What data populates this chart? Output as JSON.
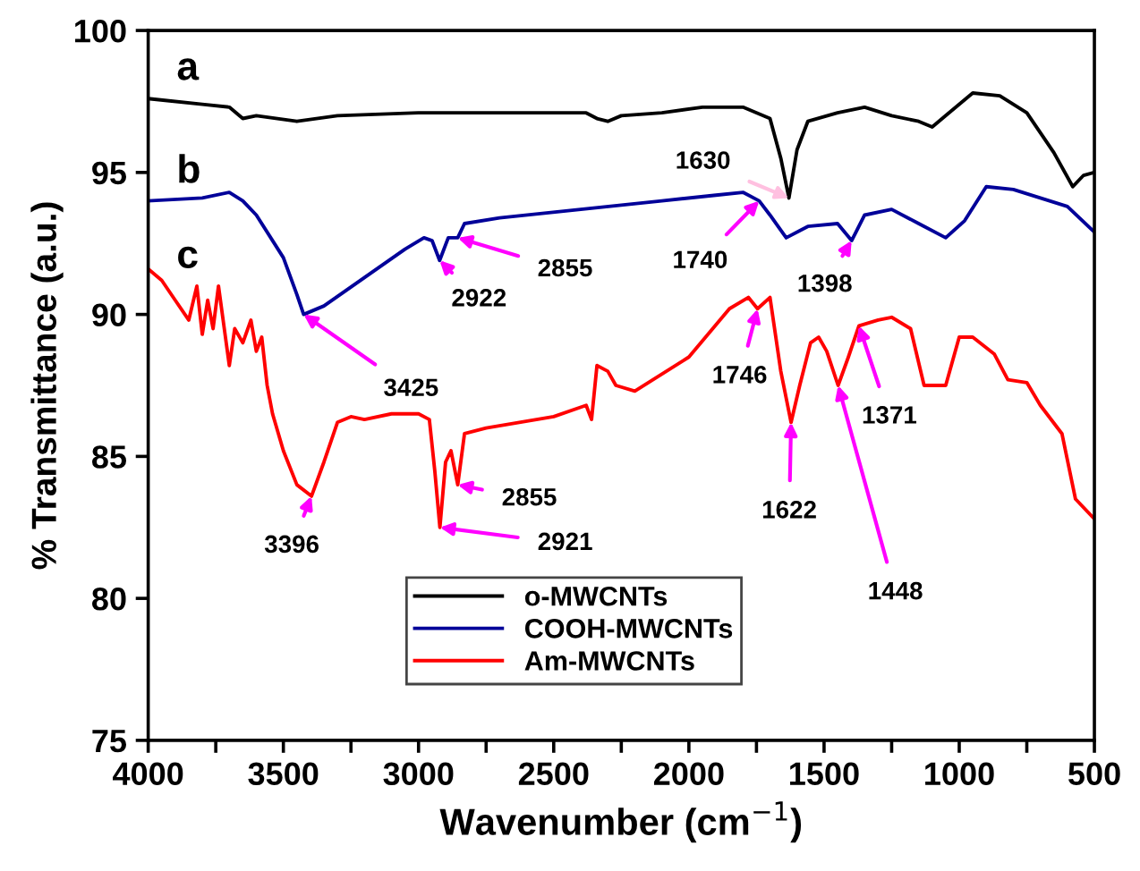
{
  "chart_data": {
    "type": "line",
    "xlabel": "Wavenumber (cm$^{−1}$)",
    "ylabel": "% Transmittance (a.u.)",
    "xlim": [
      4000,
      500
    ],
    "ylim": [
      75,
      100
    ],
    "xticks": [
      4000,
      {
        "value": 3750,
        "label": null
      },
      3500,
      {
        "value": 3250,
        "label": null
      },
      3000,
      {
        "value": 2750,
        "label": null
      },
      2500,
      {
        "value": 2250,
        "label": null
      },
      2000,
      {
        "value": 1750,
        "label": null
      },
      1500,
      {
        "value": 1250,
        "label": null
      },
      1000,
      {
        "value": 750,
        "label": null
      },
      500
    ],
    "yticks": [
      75,
      80,
      85,
      90,
      95,
      100
    ],
    "grid": false,
    "legend": "bottom",
    "marker": "none",
    "line_style": "solid",
    "series": [
      {
        "name": "o-MWCNTs",
        "color": "#000000",
        "x": [
          4000,
          3800,
          3700,
          3650,
          3600,
          3450,
          3300,
          3000,
          2500,
          2380,
          2340,
          2300,
          2250,
          2100,
          1950,
          1800,
          1700,
          1660,
          1630,
          1600,
          1560,
          1450,
          1350,
          1250,
          1150,
          1100,
          1050,
          950,
          850,
          750,
          650,
          580,
          540,
          500
        ],
        "values": [
          97.6,
          97.4,
          97.3,
          96.9,
          97.0,
          96.8,
          97.0,
          97.1,
          97.1,
          97.1,
          96.9,
          96.8,
          97.0,
          97.1,
          97.3,
          97.3,
          96.9,
          95.5,
          94.1,
          95.8,
          96.8,
          97.1,
          97.3,
          97.0,
          96.8,
          96.6,
          97.0,
          97.8,
          97.7,
          97.1,
          95.7,
          94.5,
          94.9,
          95.0
        ]
      },
      {
        "name": "COOH-MWCNTs",
        "color": "#000099",
        "x": [
          4000,
          3800,
          3700,
          3650,
          3600,
          3500,
          3450,
          3425,
          3350,
          3200,
          3050,
          2980,
          2950,
          2922,
          2890,
          2855,
          2830,
          2700,
          2400,
          2100,
          1900,
          1800,
          1740,
          1700,
          1640,
          1560,
          1450,
          1398,
          1350,
          1250,
          1150,
          1050,
          980,
          900,
          800,
          700,
          600,
          500
        ],
        "values": [
          94.0,
          94.1,
          94.3,
          94.0,
          93.5,
          92.0,
          90.7,
          90.0,
          90.3,
          91.3,
          92.3,
          92.7,
          92.6,
          91.9,
          92.7,
          92.7,
          93.2,
          93.4,
          93.7,
          94.0,
          94.2,
          94.3,
          94.0,
          93.5,
          92.7,
          93.1,
          93.2,
          92.6,
          93.5,
          93.7,
          93.2,
          92.7,
          93.3,
          94.5,
          94.4,
          94.1,
          93.8,
          92.9
        ]
      },
      {
        "name": "Am-MWCNTs",
        "color": "#ff0000",
        "x": [
          4000,
          3950,
          3900,
          3850,
          3820,
          3800,
          3780,
          3760,
          3740,
          3700,
          3680,
          3650,
          3620,
          3600,
          3580,
          3560,
          3540,
          3500,
          3450,
          3396,
          3350,
          3300,
          3250,
          3200,
          3100,
          3000,
          2960,
          2940,
          2921,
          2900,
          2880,
          2855,
          2830,
          2750,
          2500,
          2380,
          2360,
          2340,
          2300,
          2270,
          2200,
          2000,
          1850,
          1780,
          1746,
          1700,
          1660,
          1622,
          1590,
          1550,
          1520,
          1490,
          1448,
          1410,
          1371,
          1300,
          1250,
          1180,
          1130,
          1050,
          1000,
          950,
          870,
          820,
          750,
          700,
          620,
          570,
          500
        ],
        "values": [
          91.6,
          91.2,
          90.5,
          89.8,
          91.0,
          89.3,
          90.5,
          89.5,
          91.0,
          88.2,
          89.5,
          89.0,
          89.8,
          88.7,
          89.2,
          87.5,
          86.5,
          85.2,
          84.0,
          83.6,
          84.8,
          86.2,
          86.4,
          86.3,
          86.5,
          86.5,
          86.3,
          84.5,
          82.5,
          84.8,
          85.2,
          84.0,
          85.8,
          86.0,
          86.4,
          86.8,
          86.3,
          88.2,
          88.0,
          87.5,
          87.3,
          88.5,
          90.2,
          90.6,
          90.2,
          90.6,
          88.0,
          86.2,
          87.5,
          89.0,
          89.2,
          88.7,
          87.5,
          88.5,
          89.6,
          89.8,
          89.9,
          89.5,
          87.5,
          87.5,
          89.2,
          89.2,
          88.6,
          87.7,
          87.6,
          86.8,
          85.8,
          83.5,
          82.8
        ]
      }
    ],
    "annotations": [
      "a",
      "b",
      "c",
      {
        "text": "1630",
        "x": 1630,
        "y": 94.1
      },
      {
        "text": "2922",
        "x": 2922,
        "y": 91.9
      },
      {
        "text": "2855",
        "x": 2855,
        "y": 92.7
      },
      {
        "text": "3425",
        "x": 3425,
        "y": 90.0
      },
      {
        "text": "1740",
        "x": 1740,
        "y": 94.0
      },
      {
        "text": "1398",
        "x": 1398,
        "y": 92.6
      },
      {
        "text": "3396",
        "x": 3396,
        "y": 83.6
      },
      {
        "text": "2921",
        "x": 2921,
        "y": 82.5
      },
      {
        "text": "2855",
        "x": 2855,
        "y": 84.0
      },
      {
        "text": "1746",
        "x": 1746,
        "y": 90.2
      },
      {
        "text": "1622",
        "x": 1622,
        "y": 86.2
      },
      {
        "text": "1448",
        "x": 1448,
        "y": 87.5
      },
      {
        "text": "1371",
        "x": 1371,
        "y": 89.6
      }
    ]
  }
}
